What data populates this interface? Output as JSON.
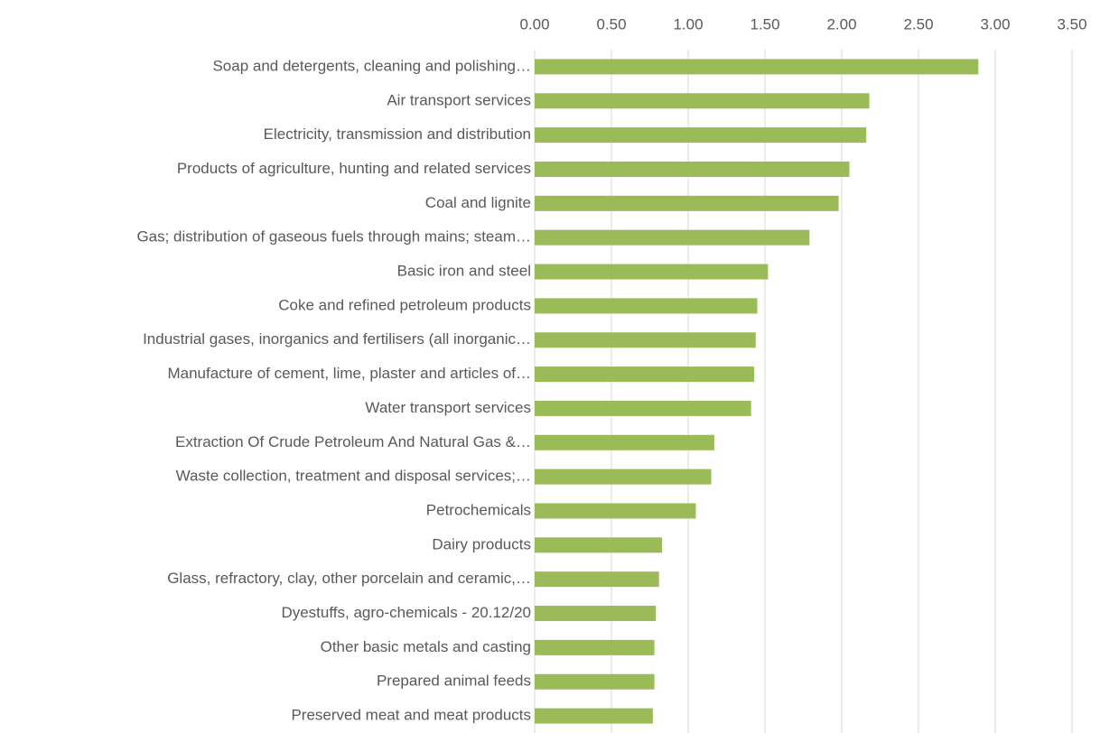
{
  "chart_data": {
    "type": "hbar",
    "categories": [
      "Soap and detergents, cleaning and polishing…",
      "Air transport services",
      "Electricity, transmission and distribution",
      "Products of agriculture, hunting and related services",
      "Coal and lignite",
      "Gas; distribution of gaseous fuels through mains; steam…",
      "Basic iron and steel",
      "Coke and refined petroleum products",
      "Industrial gases, inorganics and fertilisers (all inorganic…",
      "Manufacture of cement, lime, plaster and articles of…",
      "Water transport services",
      "Extraction Of Crude Petroleum And Natural Gas  &…",
      "Waste collection, treatment and disposal services;…",
      "Petrochemicals",
      "Dairy products",
      "Glass, refractory, clay, other porcelain and ceramic,…",
      "Dyestuffs, agro-chemicals - 20.12/20",
      "Other basic metals and casting",
      "Prepared animal feeds",
      "Preserved meat and meat products"
    ],
    "values": [
      2.89,
      2.18,
      2.16,
      2.05,
      1.98,
      1.79,
      1.52,
      1.45,
      1.44,
      1.43,
      1.41,
      1.17,
      1.15,
      1.05,
      0.83,
      0.81,
      0.79,
      0.78,
      0.78,
      0.77
    ],
    "color": "#9bbb59",
    "xlim": [
      0,
      3.5
    ],
    "xticks": [
      {
        "value": 0,
        "label": "0.00"
      },
      {
        "value": 0.5,
        "label": "0.50"
      },
      {
        "value": 1,
        "label": "1.00"
      },
      {
        "value": 1.5,
        "label": "1.50"
      },
      {
        "value": 2,
        "label": "2.00"
      },
      {
        "value": 2.5,
        "label": "2.50"
      },
      {
        "value": 3,
        "label": "3.00"
      },
      {
        "value": 3.5,
        "label": "3.50"
      }
    ],
    "grid": true
  }
}
